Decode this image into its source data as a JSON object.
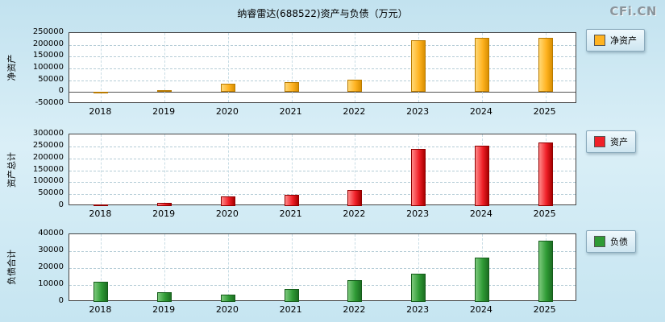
{
  "page": {
    "title": "纳睿雷达(688522)资产与负债（万元）",
    "watermark": "CFi.CN"
  },
  "chart_data": [
    {
      "type": "bar",
      "ylabel": "净资产",
      "legend": "净资产",
      "categories": [
        "2018",
        "2019",
        "2020",
        "2021",
        "2022",
        "2023",
        "2024",
        "2025"
      ],
      "values": [
        2500,
        9000,
        35000,
        41000,
        52000,
        220000,
        230000,
        228000
      ],
      "ylim": [
        -50000,
        250000
      ],
      "yticks": [
        -50000,
        0,
        50000,
        100000,
        150000,
        200000,
        250000
      ],
      "color": "#ffb321",
      "color_light": "#ffd977",
      "color_dark": "#d98f00",
      "border_color": "#b97a00"
    },
    {
      "type": "bar",
      "ylabel": "资产总计",
      "legend": "资产",
      "categories": [
        "2018",
        "2019",
        "2020",
        "2021",
        "2022",
        "2023",
        "2024",
        "2025"
      ],
      "values": [
        8000,
        12000,
        40000,
        48000,
        68000,
        240000,
        252000,
        265000
      ],
      "ylim": [
        0,
        300000
      ],
      "yticks": [
        0,
        50000,
        100000,
        150000,
        200000,
        250000,
        300000
      ],
      "color": "#f02028",
      "color_light": "#ff8a8a",
      "color_dark": "#a80000",
      "border_color": "#8f0000"
    },
    {
      "type": "bar",
      "ylabel": "负债合计",
      "legend": "负债",
      "categories": [
        "2018",
        "2019",
        "2020",
        "2021",
        "2022",
        "2023",
        "2024",
        "2025"
      ],
      "values": [
        12000,
        5500,
        4200,
        7500,
        13000,
        16500,
        26000,
        36000
      ],
      "ylim": [
        0,
        40000
      ],
      "yticks": [
        0,
        10000,
        20000,
        30000,
        40000
      ],
      "color": "#2f9b35",
      "color_light": "#7cc97c",
      "color_dark": "#1c6e22",
      "border_color": "#145c1a"
    }
  ]
}
